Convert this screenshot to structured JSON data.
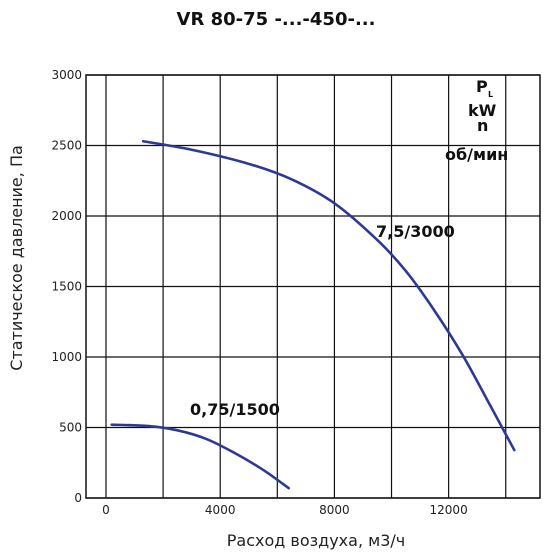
{
  "chart_data": {
    "type": "line",
    "title": "VR 80-75 -...-450-...",
    "xlabel": "Расход воздуха, м3/ч",
    "ylabel": "Статическое давление, Па",
    "xlim": [
      -700,
      15200
    ],
    "ylim": [
      0,
      3000
    ],
    "x_ticks": [
      0,
      4000,
      8000,
      12000
    ],
    "x_tick_labels": [
      "0",
      "4000",
      "8000",
      "12000"
    ],
    "y_ticks": [
      0,
      500,
      1000,
      1500,
      2000,
      2500,
      3000
    ],
    "y_tick_labels": [
      "0",
      "500",
      "1000",
      "1500",
      "2000",
      "2500",
      "3000"
    ],
    "grid": true,
    "legend": {
      "lines": [
        {
          "text": "P",
          "sub": "L"
        },
        {
          "text": "kW",
          "sub": ""
        },
        {
          "text": "n",
          "sub": ""
        },
        {
          "text": "об/мин",
          "sub": ""
        }
      ]
    },
    "series": [
      {
        "name": "7,5/3000",
        "color": "#2e3a92",
        "x": [
          1300,
          3000,
          5000,
          6500,
          8000,
          9500,
          10500,
          11500,
          12500,
          13500,
          14300
        ],
        "y": [
          2530,
          2470,
          2370,
          2260,
          2090,
          1830,
          1610,
          1330,
          1010,
          640,
          340
        ]
      },
      {
        "name": "0,75/1500",
        "color": "#2e3a92",
        "x": [
          200,
          1500,
          2500,
          3500,
          4500,
          5500,
          6400
        ],
        "y": [
          520,
          510,
          480,
          420,
          320,
          200,
          70
        ]
      }
    ]
  }
}
